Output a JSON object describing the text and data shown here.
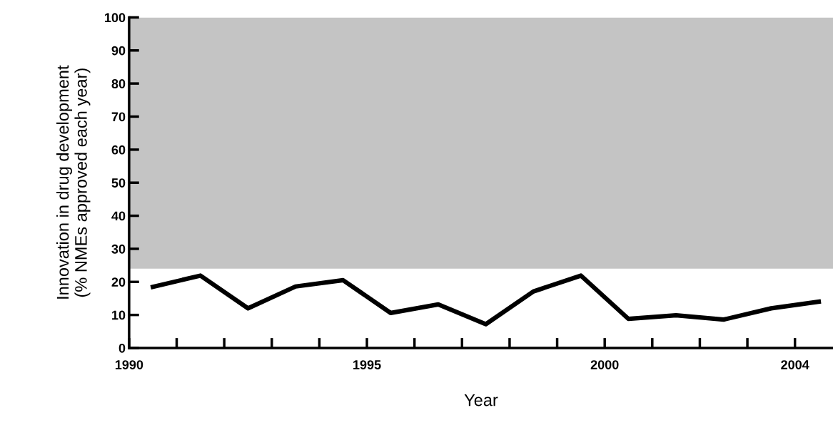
{
  "chart_data": {
    "type": "line",
    "xlabel": "Year",
    "ylabel": "Innovation in drug development\n(% NMEs approved each year)",
    "x": [
      1990.5,
      1991.5,
      1992.5,
      1993.5,
      1994.5,
      1995.5,
      1996.5,
      1997.5,
      1998.5,
      1999.5,
      2000.5,
      2001.5,
      2002.5,
      2003.5,
      2004.5
    ],
    "series": [
      {
        "color": "#000000",
        "values": [
          18.5,
          21.9,
          12.0,
          18.6,
          20.5,
          10.6,
          13.2,
          7.2,
          17.1,
          21.9,
          8.8,
          9.9,
          8.6,
          12.0,
          14.0
        ]
      }
    ],
    "xlim": [
      1990,
      2004.8
    ],
    "xticks": [
      1990,
      {
        "value": 1991,
        "label": null
      },
      {
        "value": 1992,
        "label": null
      },
      {
        "value": 1993,
        "label": null
      },
      {
        "value": 1994,
        "label": null
      },
      1995,
      {
        "value": 1996,
        "label": null
      },
      {
        "value": 1997,
        "label": null
      },
      {
        "value": 1998,
        "label": null
      },
      {
        "value": 1999,
        "label": null
      },
      2000,
      {
        "value": 2001,
        "label": null
      },
      {
        "value": 2002,
        "label": null
      },
      {
        "value": 2003,
        "label": null
      },
      2004
    ],
    "ylim": [
      0,
      100
    ],
    "yticks": [
      0,
      10,
      20,
      30,
      40,
      50,
      60,
      70,
      80,
      90,
      100
    ],
    "bands": [
      {
        "axis": "y",
        "from": 24,
        "to": 100,
        "color": "#c4c4c4"
      }
    ],
    "grid": false,
    "marker": "none",
    "line_style": "solid"
  }
}
